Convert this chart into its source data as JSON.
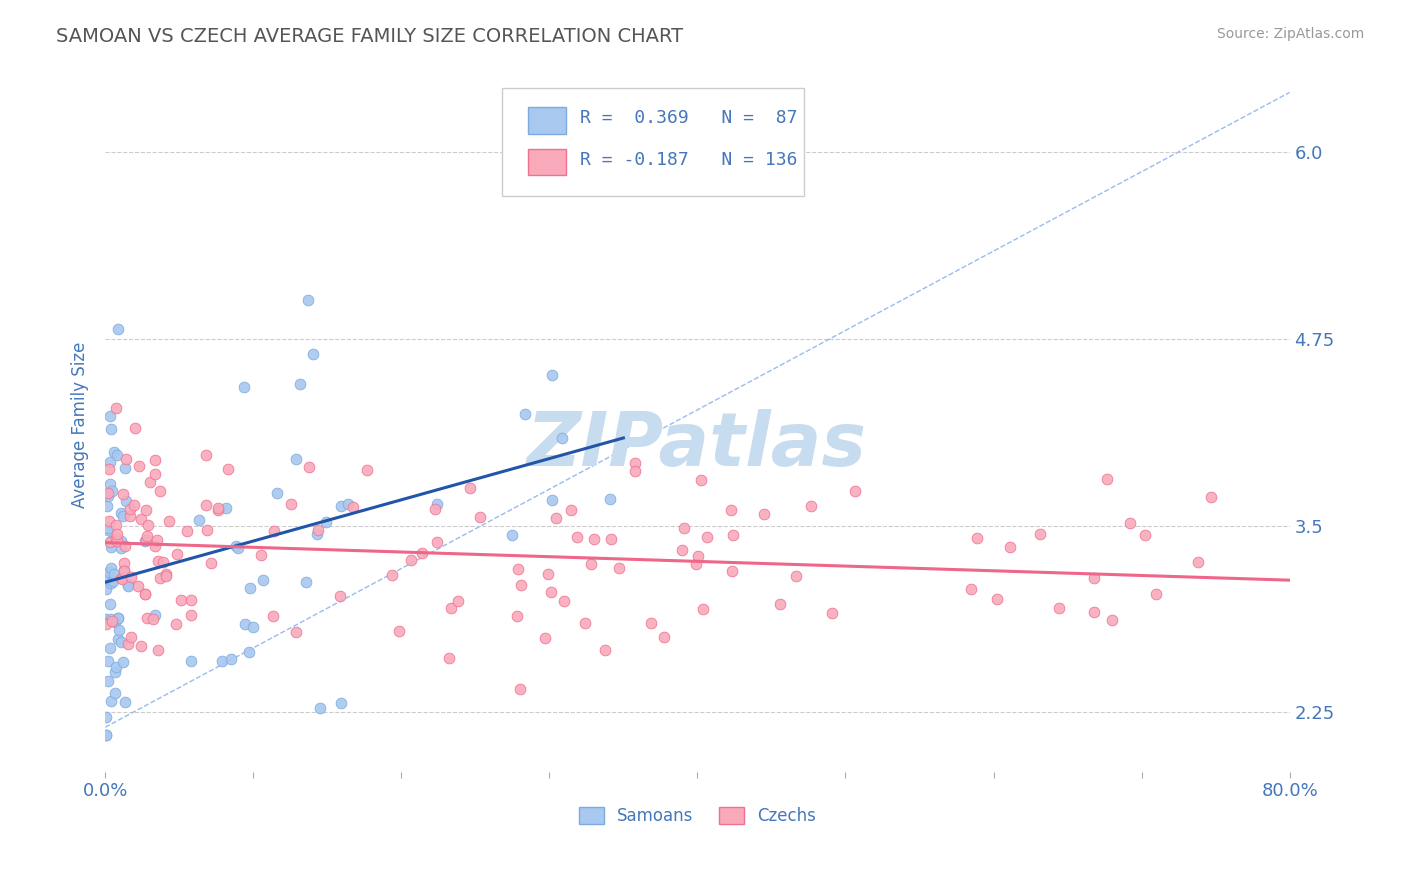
{
  "title": "SAMOAN VS CZECH AVERAGE FAMILY SIZE CORRELATION CHART",
  "source_text": "Source: ZipAtlas.com",
  "ylabel": "Average Family Size",
  "xlim": [
    0.0,
    0.8
  ],
  "ylim": [
    1.85,
    6.5
  ],
  "yticks": [
    2.25,
    3.5,
    4.75,
    6.0
  ],
  "xticks": [
    0.0,
    0.1,
    0.2,
    0.3,
    0.4,
    0.5,
    0.6,
    0.7,
    0.8
  ],
  "xtick_labels": [
    "0.0%",
    "",
    "",
    "",
    "",
    "",
    "",
    "",
    "80.0%"
  ],
  "samoan_marker_color": "#A8C8F0",
  "samoan_edge_color": "#7AAADE",
  "czech_marker_color": "#F8AABB",
  "czech_edge_color": "#F07090",
  "trend_blue": "#2255AA",
  "trend_pink": "#EE6688",
  "diag_color": "#99BBEE",
  "R_samoan": 0.369,
  "N_samoan": 87,
  "R_czech": -0.187,
  "N_czech": 136,
  "legend_label_samoan": "Samoans",
  "legend_label_czech": "Czechs",
  "watermark": "ZIPatlas",
  "watermark_color": "#C8DCF0",
  "background_color": "#FFFFFF",
  "grid_color": "#CCCCCC",
  "title_color": "#555555",
  "tick_label_color": "#4477BB"
}
